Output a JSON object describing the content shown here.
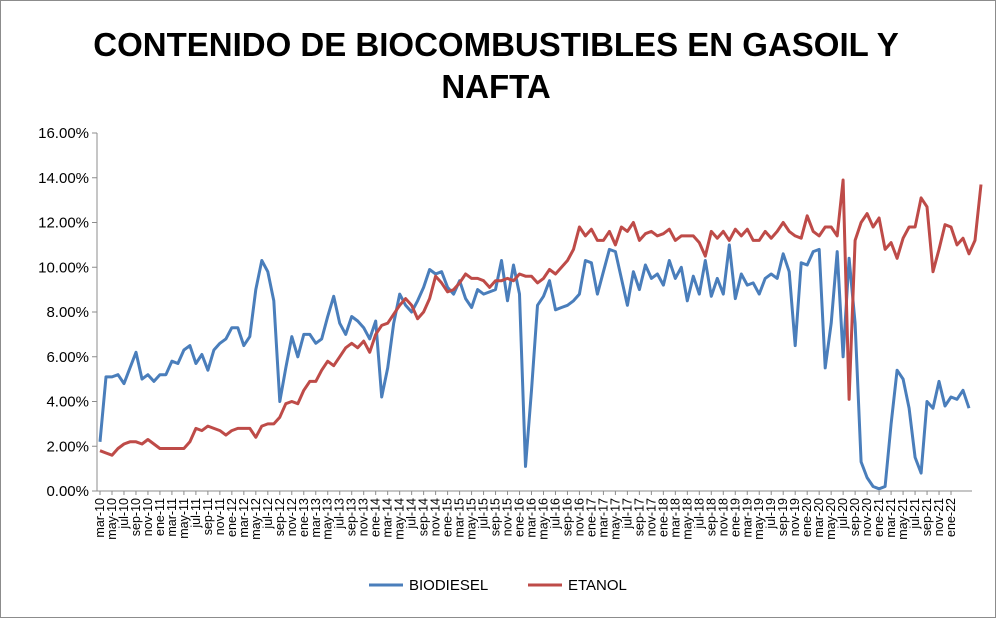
{
  "chart_data": {
    "type": "line",
    "title_line1": "CONTENIDO DE BIOCOMBUSTIBLES EN GASOIL Y",
    "title_line2": "NAFTA",
    "xlabel": "",
    "ylabel": "",
    "ylim": [
      0,
      0.16
    ],
    "y_ticks": [
      "0.00%",
      "2.00%",
      "4.00%",
      "6.00%",
      "8.00%",
      "10.00%",
      "12.00%",
      "14.00%",
      "16.00%"
    ],
    "x_tick_labels": [
      "mar-10",
      "may-10",
      "jul-10",
      "sep-10",
      "nov-10",
      "ene-11",
      "mar-11",
      "may-11",
      "jul-11",
      "sep-11",
      "nov-11",
      "ene-12",
      "mar-12",
      "may-12",
      "jul-12",
      "sep-12",
      "nov-12",
      "ene-13",
      "mar-13",
      "may-13",
      "jul-13",
      "sep-13",
      "nov-13",
      "ene-14",
      "mar-14",
      "may-14",
      "jul-14",
      "sep-14",
      "nov-14",
      "ene-15",
      "mar-15",
      "may-15",
      "jul-15",
      "sep-15",
      "nov-15",
      "ene-16",
      "mar-16",
      "may-16",
      "jul-16",
      "sep-16",
      "nov-16",
      "ene-17",
      "mar-17",
      "may-17",
      "jul-17",
      "sep-17",
      "nov-17",
      "ene-18",
      "mar-18",
      "may-18",
      "jul-18",
      "sep-18",
      "nov-18",
      "ene-19",
      "mar-19",
      "may-19",
      "jul-19",
      "sep-19",
      "nov-19",
      "ene-20",
      "mar-20",
      "may-20",
      "jul-20",
      "sep-20",
      "nov-20",
      "ene-21",
      "mar-21",
      "may-21",
      "jul-21",
      "sep-21",
      "nov-21",
      "ene-22"
    ],
    "grid": false,
    "legend_position": "bottom",
    "series": [
      {
        "name": "BIODIESEL",
        "color": "#4a7ebb",
        "values": [
          0.022,
          0.051,
          0.051,
          0.052,
          0.048,
          0.055,
          0.062,
          0.05,
          0.052,
          0.049,
          0.052,
          0.052,
          0.058,
          0.057,
          0.063,
          0.065,
          0.057,
          0.061,
          0.054,
          0.063,
          0.066,
          0.068,
          0.073,
          0.073,
          0.065,
          0.069,
          0.09,
          0.103,
          0.098,
          0.085,
          0.04,
          0.055,
          0.069,
          0.06,
          0.07,
          0.07,
          0.066,
          0.068,
          0.078,
          0.087,
          0.075,
          0.07,
          0.078,
          0.076,
          0.073,
          0.068,
          0.076,
          0.042,
          0.055,
          0.075,
          0.088,
          0.083,
          0.08,
          0.085,
          0.091,
          0.099,
          0.097,
          0.098,
          0.091,
          0.088,
          0.094,
          0.086,
          0.082,
          0.09,
          0.088,
          0.089,
          0.09,
          0.103,
          0.085,
          0.101,
          0.088,
          0.011,
          0.045,
          0.083,
          0.087,
          0.094,
          0.081,
          0.082,
          0.083,
          0.085,
          0.088,
          0.103,
          0.102,
          0.088,
          0.098,
          0.108,
          0.107,
          0.095,
          0.083,
          0.098,
          0.09,
          0.101,
          0.095,
          0.097,
          0.092,
          0.103,
          0.095,
          0.1,
          0.085,
          0.096,
          0.088,
          0.103,
          0.087,
          0.095,
          0.088,
          0.11,
          0.086,
          0.097,
          0.092,
          0.093,
          0.088,
          0.095,
          0.097,
          0.095,
          0.106,
          0.098,
          0.065,
          0.102,
          0.101,
          0.107,
          0.108,
          0.055,
          0.075,
          0.107,
          0.06,
          0.104,
          0.075,
          0.013,
          0.006,
          0.002,
          0.001,
          0.002,
          0.03,
          0.054,
          0.05,
          0.037,
          0.015,
          0.008,
          0.04,
          0.037,
          0.049,
          0.038,
          0.042,
          0.041,
          0.045,
          0.037
        ]
      },
      {
        "name": "ETANOL",
        "color": "#be4b48",
        "values": [
          0.018,
          0.017,
          0.016,
          0.019,
          0.021,
          0.022,
          0.022,
          0.021,
          0.023,
          0.021,
          0.019,
          0.019,
          0.019,
          0.019,
          0.019,
          0.022,
          0.028,
          0.027,
          0.029,
          0.028,
          0.027,
          0.025,
          0.027,
          0.028,
          0.028,
          0.028,
          0.024,
          0.029,
          0.03,
          0.03,
          0.033,
          0.039,
          0.04,
          0.039,
          0.045,
          0.049,
          0.049,
          0.054,
          0.058,
          0.056,
          0.06,
          0.064,
          0.066,
          0.064,
          0.067,
          0.062,
          0.07,
          0.074,
          0.075,
          0.079,
          0.083,
          0.086,
          0.083,
          0.077,
          0.08,
          0.086,
          0.096,
          0.093,
          0.089,
          0.09,
          0.093,
          0.097,
          0.095,
          0.095,
          0.094,
          0.091,
          0.094,
          0.094,
          0.095,
          0.094,
          0.097,
          0.096,
          0.096,
          0.093,
          0.095,
          0.099,
          0.097,
          0.1,
          0.103,
          0.108,
          0.118,
          0.114,
          0.117,
          0.112,
          0.112,
          0.116,
          0.11,
          0.118,
          0.116,
          0.12,
          0.112,
          0.115,
          0.116,
          0.114,
          0.115,
          0.117,
          0.112,
          0.114,
          0.114,
          0.114,
          0.111,
          0.105,
          0.116,
          0.113,
          0.116,
          0.112,
          0.117,
          0.114,
          0.117,
          0.112,
          0.112,
          0.116,
          0.113,
          0.116,
          0.12,
          0.116,
          0.114,
          0.113,
          0.123,
          0.116,
          0.114,
          0.118,
          0.118,
          0.114,
          0.139,
          0.041,
          0.112,
          0.12,
          0.124,
          0.118,
          0.122,
          0.108,
          0.111,
          0.104,
          0.113,
          0.118,
          0.118,
          0.131,
          0.127,
          0.098,
          0.108,
          0.119,
          0.118,
          0.11,
          0.113,
          0.106,
          0.112,
          0.137
        ]
      }
    ]
  }
}
